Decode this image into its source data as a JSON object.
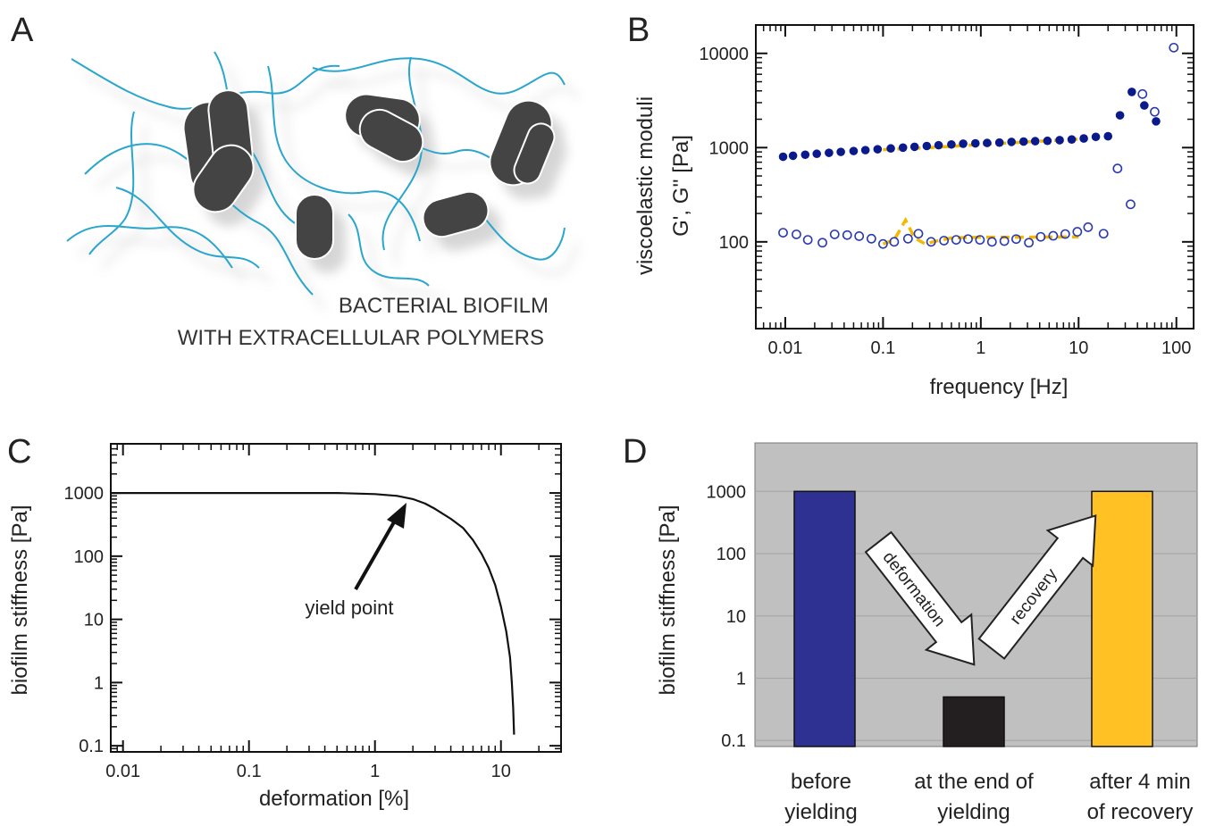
{
  "panels": {
    "A": {
      "letter": "A",
      "caption_line1": "BACTERIAL BIOFILM",
      "caption_line2": "WITH EXTRACELLULAR POLYMERS"
    },
    "B": {
      "letter": "B"
    },
    "C": {
      "letter": "C",
      "annotation": "yield point"
    },
    "D": {
      "letter": "D",
      "arrow_down_label": "deformation",
      "arrow_up_label": "recovery"
    }
  },
  "colors": {
    "storage_modulus": "#0a1a8c",
    "loss_modulus": "#2a3ab0",
    "fit_line": "#f5b800",
    "polymer_strand": "#2aa6cc",
    "bacterium": "#444444",
    "bar_before": "#2e3192",
    "bar_end": "#231f20",
    "bar_after": "#ffc124",
    "panel_d_bg": "#c0c0c0"
  },
  "icons": [
    "bacterium-icon",
    "polymer-strand-icon",
    "arrow-icon"
  ],
  "chart_data": [
    {
      "panel": "B",
      "type": "scatter",
      "ylabel_line1": "viscoelastic moduli",
      "ylabel_line2": "G', G'' [Pa]",
      "xlabel": "frequency [Hz]",
      "x_scale": "log",
      "y_scale": "log",
      "xlim": [
        0.005,
        150
      ],
      "ylim": [
        12,
        20000
      ],
      "x_ticks": [
        0.01,
        0.1,
        1,
        10,
        100
      ],
      "x_tick_labels": [
        "0.01",
        "0.1",
        "1",
        "10",
        "100"
      ],
      "y_ticks": [
        100,
        1000,
        10000
      ],
      "y_tick_labels": [
        "100",
        "1000",
        "10000"
      ],
      "grid": false,
      "series": [
        {
          "marker": "filled-circle",
          "x": [
            0.0095,
            0.012,
            0.016,
            0.021,
            0.028,
            0.037,
            0.05,
            0.066,
            0.088,
            0.12,
            0.16,
            0.21,
            0.28,
            0.37,
            0.5,
            0.66,
            0.88,
            1.16,
            1.55,
            2.06,
            2.74,
            3.6,
            4.8,
            6.4,
            8.5,
            11.3,
            15,
            20,
            26.5,
            35,
            47,
            62
          ],
          "y": [
            800,
            820,
            840,
            860,
            880,
            900,
            920,
            940,
            960,
            980,
            1000,
            1020,
            1040,
            1060,
            1080,
            1100,
            1110,
            1120,
            1130,
            1150,
            1160,
            1170,
            1180,
            1200,
            1220,
            1250,
            1300,
            1320,
            2200,
            3900,
            2800,
            1900
          ]
        },
        {
          "marker": "open-circle",
          "x": [
            0.0095,
            0.013,
            0.017,
            0.024,
            0.032,
            0.043,
            0.057,
            0.076,
            0.1,
            0.13,
            0.18,
            0.23,
            0.31,
            0.42,
            0.56,
            0.74,
            0.98,
            1.3,
            1.74,
            2.3,
            3.1,
            4.1,
            5.5,
            7.3,
            9.7,
            12.5,
            18,
            25,
            34,
            45,
            60,
            94
          ],
          "y": [
            125,
            120,
            105,
            98,
            120,
            118,
            115,
            108,
            95,
            100,
            108,
            122,
            100,
            103,
            105,
            107,
            105,
            100,
            102,
            107,
            98,
            113,
            116,
            121,
            128,
            143,
            122,
            600,
            250,
            3700,
            2400,
            11500
          ]
        },
        {
          "marker": "dashed-line",
          "x": [
            0.1,
            0.3,
            1,
            3,
            10
          ],
          "y": [
            950,
            1000,
            1080,
            1150,
            1230
          ]
        },
        {
          "marker": "dashed-line",
          "x": [
            0.1,
            0.13,
            0.17,
            0.21,
            0.27,
            0.35,
            0.5,
            1,
            3,
            10
          ],
          "y": [
            95,
            105,
            170,
            110,
            95,
            102,
            110,
            112,
            112,
            113
          ]
        }
      ]
    },
    {
      "panel": "C",
      "type": "line",
      "ylabel": "biofilm stiffness [Pa]",
      "xlabel": "deformation [%]",
      "x_scale": "log",
      "y_scale": "log",
      "xlim": [
        0.008,
        30
      ],
      "ylim": [
        0.08,
        6000
      ],
      "x_ticks": [
        0.01,
        0.1,
        1,
        10
      ],
      "x_tick_labels": [
        "0.01",
        "0.1",
        "1",
        "10"
      ],
      "y_ticks": [
        0.1,
        1,
        10,
        100,
        1000
      ],
      "y_tick_labels": [
        "0.1",
        "1",
        "10",
        "100",
        "1000"
      ],
      "grid": false,
      "series": [
        {
          "x": [
            0.008,
            0.5,
            1.0,
            1.5,
            2.0,
            2.5,
            3.0,
            4.0,
            5.0,
            6.0,
            7.0,
            8.0,
            9.0,
            10.0,
            11.0,
            11.8,
            12.2,
            12.5,
            12.7
          ],
          "y": [
            1000,
            1000,
            960,
            900,
            800,
            680,
            560,
            390,
            280,
            180,
            110,
            65,
            35,
            16,
            6.5,
            2.5,
            1.0,
            0.4,
            0.15
          ]
        }
      ]
    },
    {
      "panel": "D",
      "type": "bar",
      "ylabel": "biofilm stiffness [Pa]",
      "y_scale": "log",
      "ylim": [
        0.08,
        6000
      ],
      "y_ticks": [
        0.1,
        1,
        10,
        100,
        1000
      ],
      "y_tick_labels": [
        "0.1",
        "1",
        "10",
        "100",
        "1000"
      ],
      "grid": true,
      "categories": [
        "before yielding",
        "at the end of yielding",
        "after 4 min of recovery"
      ],
      "category_lines": [
        [
          "before",
          "yielding"
        ],
        [
          "at the end of",
          "yielding"
        ],
        [
          "after 4 min",
          "of recovery"
        ]
      ],
      "values": [
        1000,
        0.5,
        1000
      ]
    }
  ]
}
